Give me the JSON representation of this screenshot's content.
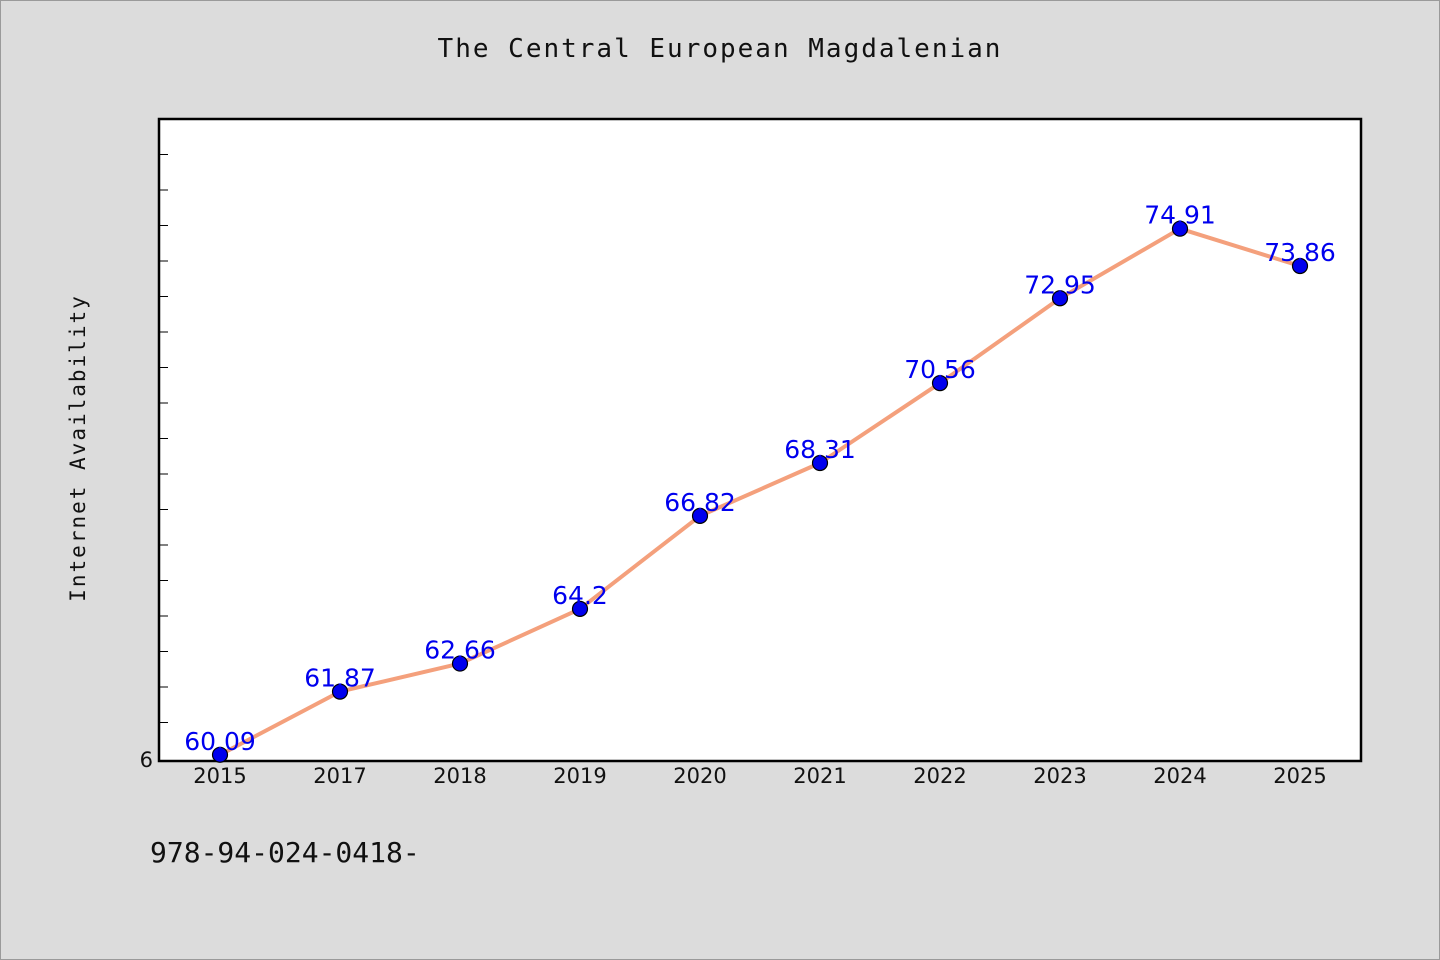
{
  "chart_data": {
    "type": "line",
    "title": "The Central European Magdalenian",
    "ylabel": "Internet Availability",
    "xlabel": "",
    "categories": [
      "2015",
      "2017",
      "2018",
      "2019",
      "2020",
      "2021",
      "2022",
      "2023",
      "2024",
      "2025"
    ],
    "series": [
      {
        "values": [
          60.09,
          61.87,
          62.66,
          64.2,
          66.82,
          68.31,
          70.56,
          72.95,
          74.91,
          73.86
        ],
        "data_labels": [
          "60.09",
          "61.87",
          "62.66",
          "64.2",
          "66.82",
          "68.31",
          "70.56",
          "72.95",
          "74.91",
          "73.86"
        ],
        "line_color": "#f4a07c",
        "marker_color": "#0000ee"
      }
    ],
    "ylim": [
      60,
      78
    ],
    "y_tick_label": "6",
    "y_minor_tick_step": 1,
    "grid": false,
    "legend": "none"
  },
  "footer": {
    "code": "978-94-024-0418-"
  }
}
